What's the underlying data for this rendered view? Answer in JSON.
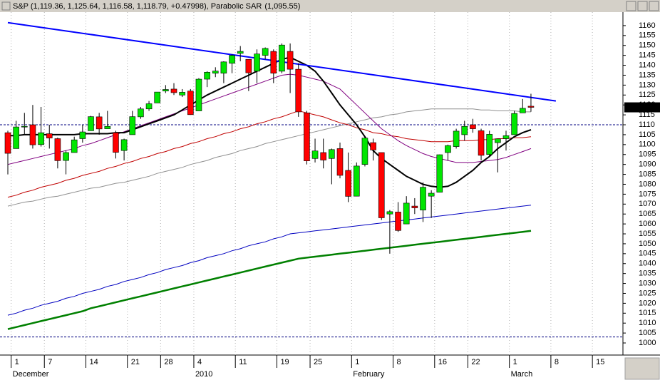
{
  "chart_data": {
    "type": "candlestick",
    "title": "S&P (1,119.36, 1,125.64, 1,116.58, 1,118.79, +0.47998), Parabolic SAR",
    "indicator_value": "(1,095.55)",
    "indicator_color": "#ff0000",
    "categories": [
      null,
      "1",
      null,
      null,
      null,
      "7",
      null,
      null,
      null,
      null,
      "14",
      null,
      null,
      null,
      null,
      "21",
      null,
      null,
      null,
      "28",
      null,
      null,
      null,
      "4",
      null,
      null,
      null,
      null,
      "11",
      null,
      null,
      null,
      null,
      "19",
      null,
      null,
      null,
      "25",
      null,
      null,
      null,
      null,
      "1",
      null,
      null,
      null,
      null,
      "8",
      null,
      null,
      null,
      null,
      "16",
      null,
      null,
      null,
      "22",
      null,
      null,
      null,
      null,
      "1",
      null,
      null,
      null,
      null,
      "8",
      null,
      null,
      null,
      null,
      "15",
      null,
      null
    ],
    "category_groups": [
      null,
      "December",
      null,
      null,
      null,
      null,
      null,
      null,
      null,
      null,
      null,
      null,
      null,
      null,
      null,
      null,
      null,
      null,
      null,
      null,
      null,
      null,
      null,
      "2010",
      null,
      null,
      null,
      null,
      null,
      null,
      null,
      null,
      null,
      null,
      null,
      null,
      null,
      null,
      null,
      null,
      null,
      null,
      "February",
      null,
      null,
      null,
      null,
      null,
      null,
      null,
      null,
      null,
      null,
      null,
      null,
      null,
      null,
      null,
      null,
      null,
      null,
      "March",
      null,
      null,
      null,
      null,
      null,
      null,
      null,
      null,
      null,
      null,
      null,
      null
    ],
    "open": [
      1106,
      1098,
      1109,
      1110,
      1100,
      1105.5,
      1103,
      1092,
      1096,
      1103,
      1107,
      1114,
      1108,
      1106,
      1097,
      1105,
      1114,
      1118,
      1121,
      1127,
      1128,
      1125,
      1127,
      1117,
      1133,
      1136,
      1136,
      1141,
      1146,
      1143,
      1137,
      1145,
      1147,
      1137,
      1147,
      1138,
      1116,
      1093,
      1096,
      1093,
      1098,
      1087,
      1074,
      1090,
      1101,
      1096,
      1065,
      1066,
      1060,
      1069,
      1067,
      1074,
      1076,
      1096,
      1099,
      1105,
      1110,
      1107,
      1095,
      1101,
      1103,
      1105,
      1116,
      1119.36,
      null,
      null,
      null,
      null,
      null,
      null,
      null,
      null,
      null,
      null
    ],
    "high": [
      1107,
      1112,
      1116,
      1120,
      1119,
      1110,
      1103.5,
      1097,
      1104,
      1110,
      1114.5,
      1116,
      1117,
      1107,
      1103,
      1117,
      1119,
      1122,
      1126.5,
      1130,
      1131,
      1128,
      1128,
      1133.5,
      1137,
      1139,
      1142,
      1145.5,
      1149.7,
      1143,
      1148,
      1149,
      1148,
      1151,
      1151,
      1141,
      1117,
      1103,
      1103,
      1098,
      1101,
      1096,
      1091,
      1104,
      1103,
      1096,
      1067,
      1071,
      1074,
      1073,
      1081,
      1077,
      1095,
      1100,
      1108,
      1112,
      1113,
      1108,
      1107,
      1103,
      1107,
      1117,
      1123,
      1125.64,
      null,
      null,
      null,
      null,
      null,
      null,
      null,
      null,
      null,
      null
    ],
    "low": [
      1085,
      1098,
      1105,
      1098,
      1099,
      1098,
      1088,
      1085,
      1096,
      1101,
      1107,
      1105,
      1108,
      1093,
      1092,
      1105,
      1113,
      1117,
      1121,
      1126,
      1125,
      1124,
      1115,
      1117,
      1129,
      1134,
      1131,
      1136,
      1142,
      1127,
      1131,
      1143,
      1131,
      1136,
      1126,
      1114,
      1090,
      1091,
      1088,
      1080,
      1083,
      1071,
      1074,
      1089,
      1092,
      1062,
      1045,
      1056,
      1060,
      1065,
      1061,
      1063,
      1076,
      1092,
      1098,
      1102,
      1106,
      1092,
      1094,
      1086,
      1097,
      1105,
      1116,
      1116.58,
      null,
      null,
      null,
      null,
      null,
      null,
      null,
      null,
      null,
      null
    ],
    "close": [
      1095.6,
      1108.9,
      1109.2,
      1099.9,
      1106,
      1103.3,
      1091.9,
      1096,
      1102.4,
      1106.4,
      1114.1,
      1107.9,
      1109.2,
      1096.1,
      1102.5,
      1114.1,
      1118,
      1120.6,
      1126.5,
      1127.8,
      1126.2,
      1126.4,
      1115.1,
      1133,
      1136.5,
      1137.1,
      1141.7,
      1145,
      1147,
      1136.2,
      1145.7,
      1148.5,
      1136,
      1150.2,
      1138,
      1116.5,
      1091.8,
      1096.8,
      1092.2,
      1097.5,
      1084.5,
      1073.9,
      1089.2,
      1103.3,
      1097.3,
      1063.1,
      1066.2,
      1056.7,
      1070.5,
      1068.1,
      1078.5,
      1075.5,
      1094.9,
      1099.5,
      1106.8,
      1109.2,
      1108,
      1094.6,
      1105.2,
      1102.9,
      1104.5,
      1115.7,
      1118.3,
      1118.79,
      null,
      null,
      null,
      null,
      null,
      null,
      null,
      null,
      null,
      null
    ],
    "up_color": "#00e600",
    "down_color": "#ff0000",
    "overlays": [
      {
        "color": "#008000",
        "width": 2.5,
        "values": [
          1007,
          1008,
          1009,
          1010,
          1011,
          1012,
          1013,
          1014,
          1015,
          1016,
          1017.5,
          1018.5,
          1019.5,
          1020.5,
          1021.5,
          1022.5,
          1023.5,
          1024.5,
          1025.5,
          1026.5,
          1027.5,
          1028.5,
          1029.5,
          1030.5,
          1031.5,
          1032.5,
          1033.5,
          1034.5,
          1035.5,
          1036.5,
          1037.5,
          1038.5,
          1039.5,
          1040.5,
          1041.5,
          1042.5,
          1043,
          1043.5,
          1044,
          1044.5,
          1045,
          1045.5,
          1046,
          1046.5,
          1047,
          1047.5,
          1048,
          1048.5,
          1049,
          1049.5,
          1050,
          1050.5,
          1051,
          1051.5,
          1052,
          1052.5,
          1053,
          1053.5,
          1054,
          1054.5,
          1055,
          1055.5,
          1056,
          1056.5,
          null,
          null,
          null,
          null,
          null,
          null,
          null,
          null,
          null,
          null
        ]
      },
      {
        "color": "#0000c0",
        "width": 1,
        "values": [
          1014,
          1015,
          1016.5,
          1017.5,
          1019,
          1020,
          1021,
          1022.5,
          1023.5,
          1025,
          1026,
          1027,
          1028.5,
          1029.5,
          1031,
          1032,
          1033,
          1034.5,
          1035.5,
          1037,
          1038,
          1039,
          1040.5,
          1041.5,
          1043,
          1044,
          1045,
          1046.5,
          1047.5,
          1049,
          1050,
          1051,
          1052.5,
          1053.5,
          1055,
          1055.5,
          1056,
          1056.5,
          1057,
          1057.5,
          1058,
          1058.5,
          1059,
          1059.5,
          1060,
          1060.5,
          1061,
          1061.5,
          1062,
          1062.5,
          1063,
          1063.5,
          1064,
          1064.5,
          1065,
          1065.5,
          1066,
          1066.5,
          1067,
          1067.5,
          1068,
          1068.5,
          1069,
          1069.5,
          null,
          null,
          null,
          null,
          null,
          null,
          null,
          null,
          null,
          null
        ]
      },
      {
        "color": "#909090",
        "width": 1,
        "values": [
          1069,
          1070,
          1071,
          1071.5,
          1072.5,
          1073.5,
          1074,
          1075,
          1076,
          1077,
          1078,
          1078.5,
          1079.5,
          1080.5,
          1081,
          1082,
          1083,
          1084,
          1085.5,
          1086.5,
          1087.5,
          1088.5,
          1090,
          1091,
          1092,
          1093.5,
          1094.5,
          1095.5,
          1097,
          1098,
          1099,
          1100.5,
          1101.5,
          1102.5,
          1103.5,
          1104.5,
          1105.5,
          1106.5,
          1107.5,
          1108.5,
          1109.5,
          1110.5,
          1111.5,
          1112.5,
          1113.5,
          1114,
          1115,
          1115.5,
          1116.5,
          1117,
          1117.5,
          1118,
          1118,
          1118,
          1118,
          1118,
          1118,
          1117.5,
          1117.5,
          1117,
          1117,
          1117,
          1116.5,
          1116.5,
          null,
          null,
          null,
          null,
          null,
          null,
          null,
          null,
          null,
          null
        ]
      },
      {
        "color": "#c00000",
        "width": 1,
        "values": [
          1073.5,
          1074.5,
          1076,
          1077,
          1078.5,
          1079.5,
          1080.5,
          1082,
          1083,
          1084.5,
          1085.5,
          1086.5,
          1088,
          1089,
          1090.5,
          1091.5,
          1093,
          1094,
          1095.5,
          1096.5,
          1098,
          1099,
          1100.5,
          1101.5,
          1103,
          1104,
          1105.5,
          1106.5,
          1108,
          1109,
          1110.5,
          1111.5,
          1113,
          1114,
          1115.5,
          1117,
          1116,
          1115,
          1114,
          1112.5,
          1111,
          1110,
          1108.5,
          1107.5,
          1106,
          1105.5,
          1104.5,
          1104,
          1103,
          1102.5,
          1102,
          1101.5,
          1101.5,
          1101.5,
          1102,
          1102,
          1102,
          1102.5,
          1102.5,
          1103,
          1103,
          1103.5,
          1103.5,
          1104,
          null,
          null,
          null,
          null,
          null,
          null,
          null,
          null,
          null,
          null
        ]
      },
      {
        "color": "#800080",
        "width": 1,
        "values": [
          1090,
          1091,
          1092,
          1093,
          1094,
          1095,
          1096,
          1097,
          1098,
          1099.5,
          1100.5,
          1102,
          1103.5,
          1105,
          1106.5,
          1108,
          1109.5,
          1111,
          1112.5,
          1114,
          1115.5,
          1117,
          1118.5,
          1120,
          1121.5,
          1123,
          1124.5,
          1126,
          1127.5,
          1129,
          1130.5,
          1132,
          1133.5,
          1135,
          1135.5,
          1135,
          1134,
          1133,
          1132,
          1130,
          1128,
          1124,
          1120,
          1116,
          1112,
          1108,
          1105,
          1102,
          1099.5,
          1097.5,
          1095.5,
          1094,
          1093,
          1092,
          1091,
          1091,
          1091,
          1091.5,
          1092,
          1092.5,
          1093.5,
          1095,
          1096.5,
          1098,
          null,
          null,
          null,
          null,
          null,
          null,
          null,
          null,
          null,
          null
        ]
      },
      {
        "color": "#000000",
        "width": 2,
        "values": [
          1104.5,
          1104.5,
          1105,
          1105,
          1105,
          1105,
          1105,
          1105,
          1105,
          1105.5,
          1105.5,
          1105.5,
          1105.5,
          1106,
          1106,
          1107.5,
          1109,
          1110.5,
          1112,
          1113.5,
          1115,
          1117.5,
          1120,
          1122.5,
          1125,
          1127,
          1129,
          1131,
          1133,
          1135,
          1137,
          1139,
          1141,
          1143,
          1144,
          1142,
          1140,
          1137,
          1132,
          1126,
          1120,
          1115,
          1110,
          1104,
          1097,
          1093,
          1090,
          1087,
          1084,
          1082,
          1080,
          1079,
          1078.5,
          1079,
          1081,
          1084,
          1087,
          1091,
          1094,
          1098,
          1101,
          1104,
          1106,
          1107.5,
          null,
          null,
          null,
          null,
          null,
          null,
          null,
          null,
          null,
          null
        ]
      }
    ],
    "trendline": {
      "color": "#0000ff",
      "start": 1161.5,
      "end": 1122
    },
    "hlines": [
      1110,
      1003
    ],
    "hline_color": "#000080",
    "last_price": {
      "value": 1118.79,
      "label": "1118.790"
    },
    "ylim": [
      993.9,
      1166.8
    ],
    "yticks": [
      1000,
      1005,
      1010,
      1015,
      1020,
      1025,
      1030,
      1035,
      1040,
      1045,
      1050,
      1055,
      1060,
      1065,
      1070,
      1075,
      1080,
      1085,
      1090,
      1095,
      1100,
      1105,
      1110,
      1115,
      1120,
      1125,
      1130,
      1135,
      1140,
      1145,
      1150,
      1155,
      1160
    ]
  }
}
